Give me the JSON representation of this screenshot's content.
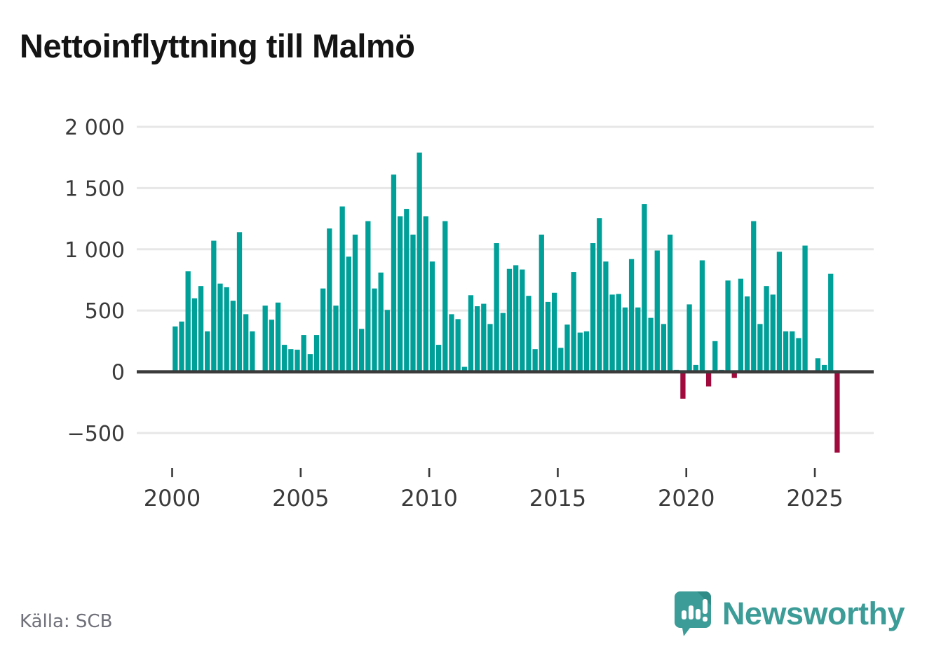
{
  "title": "Nettoinflyttning till Malmö",
  "source": "Källa: SCB",
  "brand": {
    "name": "Newsworthy",
    "logo_icon": "speech-bubble-bar-chart-icon"
  },
  "colors": {
    "positive_bar": "#00a099",
    "negative_bar": "#a00a3d",
    "gridline": "#e7e7e7",
    "zero_axis": "#3b3b3b",
    "tick_text": "#3a3a3a",
    "source_text": "#70707a",
    "brand_teal": "#3c9c97",
    "brand_teal_dark": "#2f8c87"
  },
  "chart_data": {
    "type": "bar",
    "title": "Nettoinflyttning till Malmö",
    "frequency": "quarterly",
    "start_period": "2000Q1",
    "end_period": "2025Q4",
    "xlabel": "",
    "ylabel": "",
    "grid": true,
    "legend": false,
    "ylim": [
      -750,
      2080
    ],
    "y_ticks": [
      2000,
      1500,
      1000,
      500,
      0,
      -500
    ],
    "y_tick_labels": [
      "2 000",
      "1 500",
      "1 000",
      "500",
      "0",
      "−500"
    ],
    "x_tick_years": [
      2000,
      2005,
      2010,
      2015,
      2020,
      2025
    ],
    "x_tick_labels": [
      "2000",
      "2005",
      "2010",
      "2015",
      "2020",
      "2025"
    ],
    "values": [
      370,
      410,
      820,
      600,
      700,
      330,
      1070,
      720,
      690,
      580,
      1140,
      470,
      330,
      10,
      540,
      425,
      565,
      220,
      185,
      180,
      300,
      145,
      300,
      680,
      1170,
      540,
      1350,
      940,
      1120,
      350,
      1230,
      680,
      810,
      505,
      1610,
      1270,
      1330,
      1120,
      1790,
      1270,
      900,
      220,
      1230,
      470,
      430,
      40,
      625,
      535,
      555,
      390,
      1050,
      480,
      840,
      870,
      835,
      620,
      185,
      1120,
      570,
      645,
      195,
      385,
      815,
      320,
      330,
      1050,
      1255,
      900,
      630,
      635,
      525,
      920,
      525,
      1370,
      440,
      990,
      390,
      1120,
      15,
      -220,
      550,
      55,
      910,
      -120,
      250,
      15,
      745,
      -50,
      760,
      615,
      1230,
      390,
      700,
      630,
      980,
      330,
      330,
      275,
      1030,
      5,
      110,
      55,
      800,
      -660
    ]
  }
}
